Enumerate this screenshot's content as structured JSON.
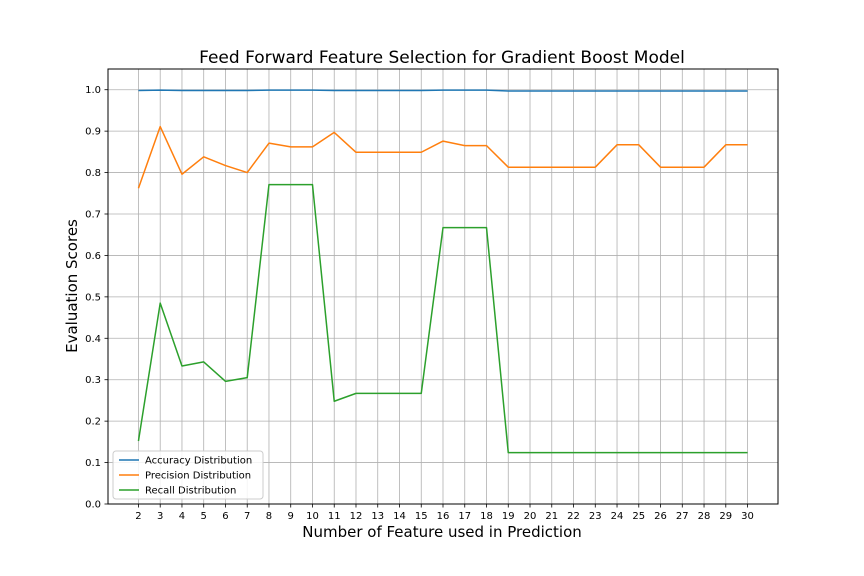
{
  "chart_data": {
    "type": "line",
    "title": "Feed Forward Feature Selection for Gradient Boost Model",
    "xlabel": "Number of Feature used in Prediction",
    "ylabel": "Evaluation Scores",
    "x": [
      2,
      3,
      4,
      5,
      6,
      7,
      8,
      9,
      10,
      11,
      12,
      13,
      14,
      15,
      16,
      17,
      18,
      19,
      20,
      21,
      22,
      23,
      24,
      25,
      26,
      27,
      28,
      29,
      30
    ],
    "xlim": [
      0.6,
      31.4
    ],
    "ylim": [
      0.0,
      1.05
    ],
    "yticks": [
      0.0,
      0.1,
      0.2,
      0.3,
      0.4,
      0.5,
      0.6,
      0.7,
      0.8,
      0.9,
      1.0
    ],
    "ytick_labels": [
      "0.0",
      "0.1",
      "0.2",
      "0.3",
      "0.4",
      "0.5",
      "0.6",
      "0.7",
      "0.8",
      "0.9",
      "1.0"
    ],
    "grid": true,
    "legend_position": "lower-left",
    "series": [
      {
        "name": "Accuracy Distribution",
        "color": "#1f77b4",
        "values": [
          0.998,
          0.999,
          0.998,
          0.998,
          0.998,
          0.998,
          0.999,
          0.999,
          0.999,
          0.998,
          0.998,
          0.998,
          0.998,
          0.998,
          0.999,
          0.999,
          0.999,
          0.997,
          0.997,
          0.997,
          0.997,
          0.997,
          0.997,
          0.997,
          0.997,
          0.997,
          0.997,
          0.997,
          0.997
        ]
      },
      {
        "name": "Precision Distribution",
        "color": "#ff7f0e",
        "values": [
          0.762,
          0.911,
          0.796,
          0.838,
          0.817,
          0.8,
          0.871,
          0.862,
          0.862,
          0.897,
          0.849,
          0.849,
          0.849,
          0.849,
          0.876,
          0.865,
          0.865,
          0.813,
          0.813,
          0.813,
          0.813,
          0.813,
          0.867,
          0.867,
          0.813,
          0.813,
          0.813,
          0.867,
          0.867
        ]
      },
      {
        "name": "Recall Distribution",
        "color": "#2ca02c",
        "values": [
          0.152,
          0.485,
          0.333,
          0.343,
          0.296,
          0.305,
          0.771,
          0.771,
          0.771,
          0.248,
          0.267,
          0.267,
          0.267,
          0.267,
          0.667,
          0.667,
          0.667,
          0.124,
          0.124,
          0.124,
          0.124,
          0.124,
          0.124,
          0.124,
          0.124,
          0.124,
          0.124,
          0.124,
          0.124
        ]
      }
    ]
  }
}
